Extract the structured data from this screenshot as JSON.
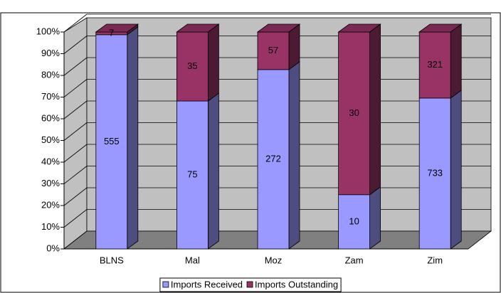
{
  "chart_data": {
    "type": "bar",
    "stacking": "percent",
    "categories": [
      "BLNS",
      "Mal",
      "Moz",
      "Zam",
      "Zim"
    ],
    "series": [
      {
        "name": "Imports Received",
        "color": "#9999ff",
        "values": [
          555,
          75,
          272,
          10,
          733
        ]
      },
      {
        "name": "Imports Outstanding",
        "color": "#993366",
        "values": [
          7,
          35,
          57,
          30,
          321
        ]
      }
    ],
    "ylim": [
      0,
      100
    ],
    "yticks": [
      {
        "value": 0,
        "label": "0%"
      },
      {
        "value": 10,
        "label": "10%"
      },
      {
        "value": 20,
        "label": "20%"
      },
      {
        "value": 30,
        "label": "30%"
      },
      {
        "value": 40,
        "label": "40%"
      },
      {
        "value": 50,
        "label": "50%"
      },
      {
        "value": 60,
        "label": "60%"
      },
      {
        "value": 70,
        "label": "70%"
      },
      {
        "value": 80,
        "label": "80%"
      },
      {
        "value": 90,
        "label": "90%"
      },
      {
        "value": 100,
        "label": "100%"
      }
    ],
    "grid": true,
    "legend": "bottom"
  }
}
